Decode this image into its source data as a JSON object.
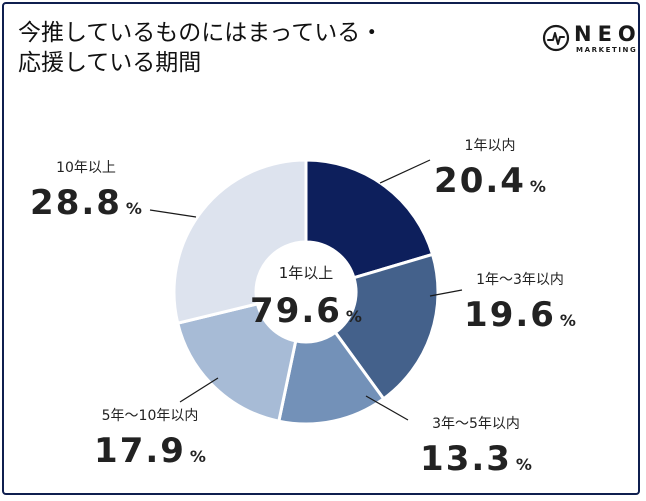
{
  "title": {
    "line1": "今推しているものにはまっている・",
    "line2": "応援している期間"
  },
  "logo": {
    "word": "NEO",
    "sub": "MARKETING",
    "icon": "pulse-icon"
  },
  "colors": {
    "border": "#0f1f4f",
    "slices": [
      "#0d1f5c",
      "#44618b",
      "#7391b8",
      "#a7bbd6",
      "#dde3ee"
    ]
  },
  "chart_data": {
    "type": "pie",
    "donut": true,
    "center": {
      "label": "1年以上",
      "value": "79.6",
      "unit": "%"
    },
    "slices": [
      {
        "label": "1年以内",
        "value": 20.4,
        "display": "20.4",
        "unit": "%"
      },
      {
        "label": "1年〜3年以内",
        "value": 19.6,
        "display": "19.6",
        "unit": "%"
      },
      {
        "label": "3年〜5年以内",
        "value": 13.3,
        "display": "13.3",
        "unit": "%"
      },
      {
        "label": "5年〜10年以内",
        "value": 17.9,
        "display": "17.9",
        "unit": "%"
      },
      {
        "label": "10年以上",
        "value": 28.8,
        "display": "28.8",
        "unit": "%"
      }
    ]
  }
}
